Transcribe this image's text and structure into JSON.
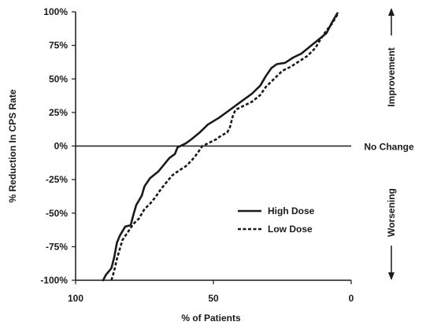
{
  "chart_data": {
    "type": "line",
    "xlabel": "% of Patients",
    "ylabel": "% Reduction In CPS Rate",
    "xlim": [
      100,
      0
    ],
    "ylim": [
      -100,
      100
    ],
    "x_ticks": [
      100,
      50,
      0
    ],
    "x_tick_labels": [
      "100",
      "50",
      "0"
    ],
    "y_ticks": [
      100,
      75,
      50,
      25,
      0,
      -25,
      -50,
      -75,
      -100
    ],
    "y_tick_labels": [
      "100%",
      "75%",
      "50%",
      "25%",
      "0%",
      "-25%",
      "-50%",
      "-75%",
      "-100%"
    ],
    "reference_line": {
      "y": 0,
      "label": "No Change"
    },
    "side_annotations": {
      "upper": "Improvement",
      "lower": "Worsening"
    },
    "legend_position": "lower-right",
    "series": [
      {
        "name": "High Dose",
        "style": "solid",
        "color": "#1a1a1a",
        "points": [
          [
            90,
            -100
          ],
          [
            89,
            -96
          ],
          [
            87,
            -91
          ],
          [
            86,
            -83
          ],
          [
            85,
            -72
          ],
          [
            84,
            -67
          ],
          [
            82,
            -60
          ],
          [
            80,
            -59
          ],
          [
            79,
            -51
          ],
          [
            78,
            -44
          ],
          [
            76,
            -37
          ],
          [
            75,
            -30
          ],
          [
            73,
            -24
          ],
          [
            70,
            -19
          ],
          [
            68,
            -14
          ],
          [
            66,
            -9
          ],
          [
            64,
            -6
          ],
          [
            63,
            -1
          ],
          [
            62,
            0
          ],
          [
            60,
            2
          ],
          [
            58,
            5
          ],
          [
            55,
            10
          ],
          [
            52,
            16
          ],
          [
            48,
            21
          ],
          [
            44,
            27
          ],
          [
            40,
            33
          ],
          [
            36,
            39
          ],
          [
            33,
            45
          ],
          [
            31,
            52
          ],
          [
            29,
            58
          ],
          [
            27,
            61
          ],
          [
            24,
            62
          ],
          [
            21,
            66
          ],
          [
            18,
            69
          ],
          [
            15,
            74
          ],
          [
            12,
            79
          ],
          [
            9,
            84
          ],
          [
            7,
            92
          ],
          [
            5,
            99
          ]
        ]
      },
      {
        "name": "Low Dose",
        "style": "dashed",
        "color": "#1a1a1a",
        "points": [
          [
            87,
            -100
          ],
          [
            86,
            -93
          ],
          [
            85,
            -84
          ],
          [
            84,
            -77
          ],
          [
            83,
            -70
          ],
          [
            81,
            -64
          ],
          [
            79,
            -58
          ],
          [
            77,
            -54
          ],
          [
            75,
            -47
          ],
          [
            73,
            -43
          ],
          [
            71,
            -38
          ],
          [
            69,
            -32
          ],
          [
            67,
            -27
          ],
          [
            65,
            -22
          ],
          [
            63,
            -19
          ],
          [
            60,
            -15
          ],
          [
            58,
            -11
          ],
          [
            56,
            -6
          ],
          [
            55,
            -3
          ],
          [
            54,
            0
          ],
          [
            52,
            2
          ],
          [
            49,
            5
          ],
          [
            47,
            8
          ],
          [
            45,
            10
          ],
          [
            44,
            14
          ],
          [
            43,
            22
          ],
          [
            42,
            27
          ],
          [
            40,
            29
          ],
          [
            36,
            33
          ],
          [
            33,
            38
          ],
          [
            31,
            44
          ],
          [
            28,
            50
          ],
          [
            25,
            56
          ],
          [
            22,
            59
          ],
          [
            19,
            63
          ],
          [
            16,
            67
          ],
          [
            13,
            73
          ],
          [
            11,
            80
          ],
          [
            9,
            86
          ],
          [
            7,
            91
          ],
          [
            5,
            98
          ]
        ]
      }
    ]
  }
}
